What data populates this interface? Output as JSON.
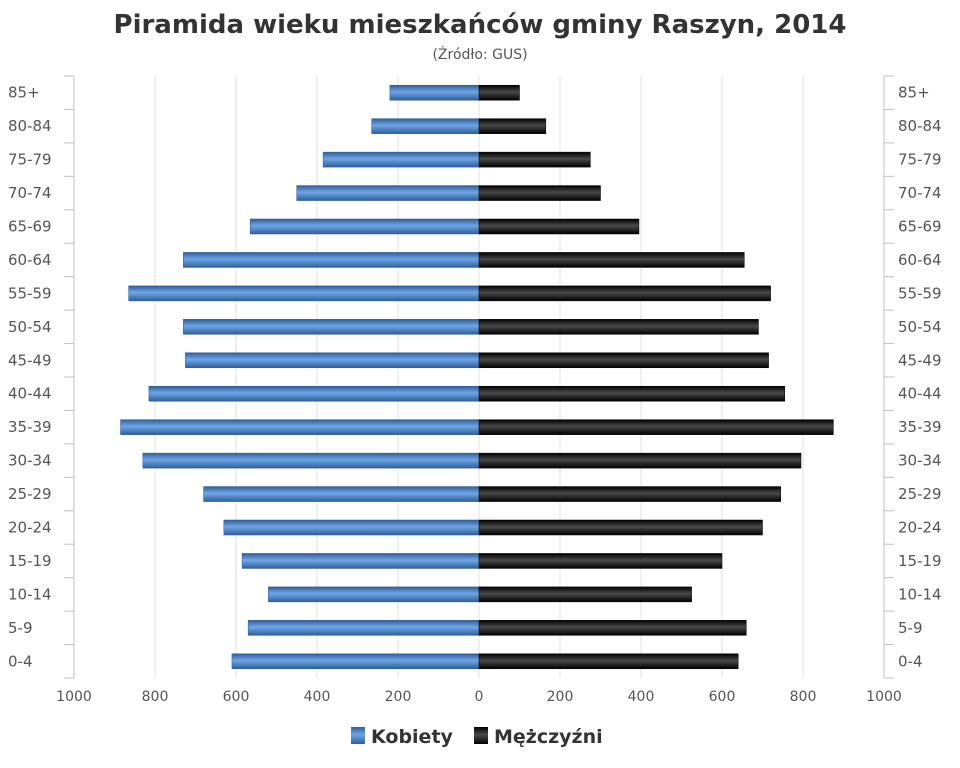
{
  "chart_data": {
    "type": "bar",
    "orientation": "horizontal-pyramid",
    "title": "Piramida wieku mieszkańców gminy Raszyn, 2014",
    "subtitle": "(Źródło: GUS)",
    "categories": [
      "85+",
      "80-84",
      "75-79",
      "70-74",
      "65-69",
      "60-64",
      "55-59",
      "50-54",
      "45-49",
      "40-44",
      "35-39",
      "30-34",
      "25-29",
      "20-24",
      "15-19",
      "10-14",
      "5-9",
      "0-4"
    ],
    "series": [
      {
        "name": "Kobiety",
        "side": "left",
        "color": "#3e7ac2",
        "values": [
          220,
          265,
          385,
          450,
          565,
          730,
          865,
          730,
          725,
          815,
          885,
          830,
          680,
          630,
          585,
          520,
          570,
          610
        ]
      },
      {
        "name": "Mężczyźni",
        "side": "right",
        "color": "#111111",
        "values": [
          100,
          165,
          275,
          300,
          395,
          655,
          720,
          690,
          715,
          755,
          875,
          795,
          745,
          700,
          600,
          525,
          660,
          640
        ]
      }
    ],
    "xlim": [
      -1000,
      1000
    ],
    "xticks": [
      -1000,
      -800,
      -600,
      -400,
      -200,
      0,
      200,
      400,
      600,
      800,
      1000
    ],
    "xtick_labels": [
      "1000",
      "800",
      "600",
      "400",
      "200",
      "0",
      "200",
      "400",
      "600",
      "800",
      "1000"
    ],
    "grid": true,
    "legend_position": "bottom-center"
  }
}
